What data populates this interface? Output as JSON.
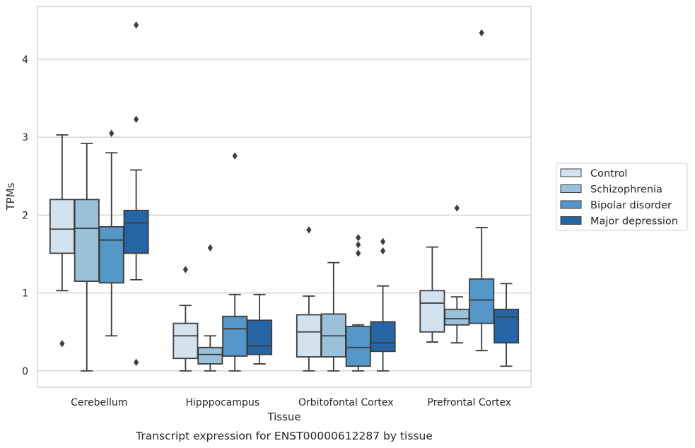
{
  "chart_data": {
    "type": "box",
    "title": "",
    "caption": "Transcript expression for ENST00000612287 by tissue",
    "xlabel": "Tissue",
    "ylabel": "TPMs",
    "ylim": [
      -0.21,
      4.68
    ],
    "yticks": [
      0,
      1,
      2,
      3,
      4
    ],
    "grid": "horizontal",
    "legend_position": "right",
    "categories": [
      "Cerebellum",
      "Hipppocampus",
      "Orbitofontal Cortex",
      "Prefrontal Cortex"
    ],
    "series": [
      {
        "name": "Control",
        "color": "#d3e2ef",
        "boxes": [
          {
            "whislo": 1.03,
            "q1": 1.51,
            "med": 1.82,
            "q3": 2.2,
            "whishi": 3.03,
            "fliers": [
              0.35
            ]
          },
          {
            "whislo": 0.0,
            "q1": 0.16,
            "med": 0.45,
            "q3": 0.61,
            "whishi": 0.84,
            "fliers": [
              1.3
            ]
          },
          {
            "whislo": 0.0,
            "q1": 0.18,
            "med": 0.5,
            "q3": 0.72,
            "whishi": 0.96,
            "fliers": [
              1.81
            ]
          },
          {
            "whislo": 0.37,
            "q1": 0.5,
            "med": 0.87,
            "q3": 1.03,
            "whishi": 1.59,
            "fliers": []
          }
        ]
      },
      {
        "name": "Schizophrenia",
        "color": "#9ac1d9",
        "boxes": [
          {
            "whislo": 0.0,
            "q1": 1.15,
            "med": 1.83,
            "q3": 2.2,
            "whishi": 2.92,
            "fliers": []
          },
          {
            "whislo": 0.0,
            "q1": 0.09,
            "med": 0.21,
            "q3": 0.3,
            "whishi": 0.45,
            "fliers": [
              1.58
            ]
          },
          {
            "whislo": 0.0,
            "q1": 0.18,
            "med": 0.45,
            "q3": 0.73,
            "whishi": 1.39,
            "fliers": []
          },
          {
            "whislo": 0.36,
            "q1": 0.59,
            "med": 0.67,
            "q3": 0.79,
            "whishi": 0.95,
            "fliers": [
              2.09
            ]
          }
        ]
      },
      {
        "name": "Bipolar disorder",
        "color": "#5597c8",
        "boxes": [
          {
            "whislo": 0.45,
            "q1": 1.13,
            "med": 1.68,
            "q3": 1.85,
            "whishi": 2.8,
            "fliers": [
              3.05
            ]
          },
          {
            "whislo": 0.0,
            "q1": 0.19,
            "med": 0.54,
            "q3": 0.7,
            "whishi": 0.98,
            "fliers": [
              2.76
            ]
          },
          {
            "whislo": 0.0,
            "q1": 0.06,
            "med": 0.3,
            "q3": 0.57,
            "whishi": 0.59,
            "fliers": [
              1.51,
              1.62,
              1.71
            ]
          },
          {
            "whislo": 0.26,
            "q1": 0.61,
            "med": 0.91,
            "q3": 1.18,
            "whishi": 1.84,
            "fliers": [
              4.34
            ]
          }
        ]
      },
      {
        "name": "Major depression",
        "color": "#2565a6",
        "boxes": [
          {
            "whislo": 1.17,
            "q1": 1.51,
            "med": 1.9,
            "q3": 2.06,
            "whishi": 2.58,
            "fliers": [
              0.11,
              3.23,
              4.44
            ]
          },
          {
            "whislo": 0.09,
            "q1": 0.21,
            "med": 0.32,
            "q3": 0.65,
            "whishi": 0.98,
            "fliers": []
          },
          {
            "whislo": 0.0,
            "q1": 0.25,
            "med": 0.36,
            "q3": 0.63,
            "whishi": 1.09,
            "fliers": [
              1.54,
              1.66
            ]
          },
          {
            "whislo": 0.06,
            "q1": 0.36,
            "med": 0.69,
            "q3": 0.79,
            "whishi": 1.12,
            "fliers": []
          }
        ]
      }
    ]
  }
}
